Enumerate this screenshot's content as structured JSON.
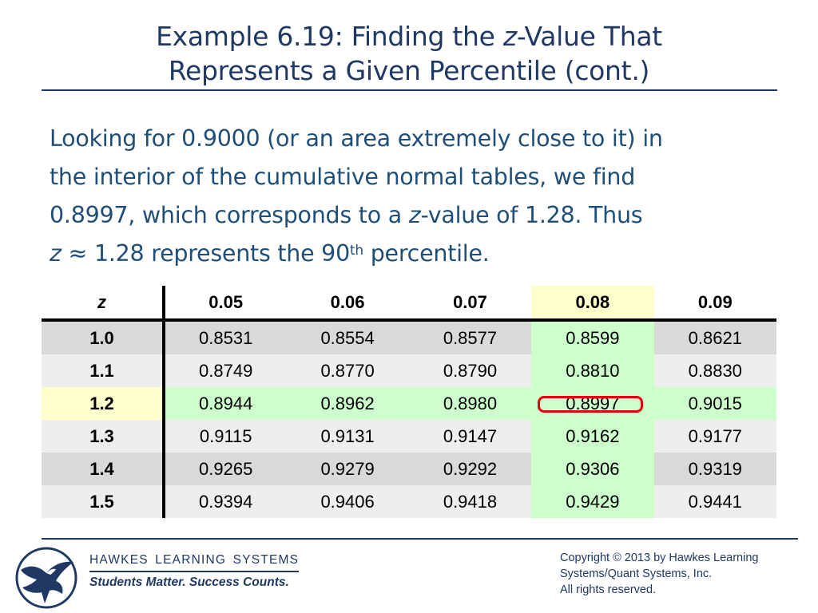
{
  "title": {
    "line1_pre": "Example 6.19: Finding the ",
    "line1_z": "z",
    "line1_post": "-Value That",
    "line2": "Represents a Given Percentile (cont.)"
  },
  "body": {
    "line1": "Looking for 0.9000 (or an area extremely close to it) in",
    "line2": "the interior of the cumulative normal tables, we find",
    "line3_pre": "0.8997, which corresponds to a ",
    "line3_z": "z",
    "line3_post": "-value of 1.28. Thus",
    "line4_z": "z",
    "line4_mid": " ≈ 1.28 represents the 90",
    "line4_sup": "th",
    "line4_post": " percentile."
  },
  "table": {
    "header_z": "z",
    "columns": [
      "0.05",
      "0.06",
      "0.07",
      "0.08",
      "0.09"
    ],
    "highlighted_column": "0.08",
    "highlighted_row": "1.2",
    "target_value": "0.8997",
    "rows": [
      {
        "z": "1.0",
        "values": [
          "0.8531",
          "0.8554",
          "0.8577",
          "0.8599",
          "0.8621"
        ]
      },
      {
        "z": "1.1",
        "values": [
          "0.8749",
          "0.8770",
          "0.8790",
          "0.8810",
          "0.8830"
        ]
      },
      {
        "z": "1.2",
        "values": [
          "0.8944",
          "0.8962",
          "0.8980",
          "0.8997",
          "0.9015"
        ]
      },
      {
        "z": "1.3",
        "values": [
          "0.9115",
          "0.9131",
          "0.9147",
          "0.9162",
          "0.9177"
        ]
      },
      {
        "z": "1.4",
        "values": [
          "0.9265",
          "0.9279",
          "0.9292",
          "0.9306",
          "0.9319"
        ]
      },
      {
        "z": "1.5",
        "values": [
          "0.9394",
          "0.9406",
          "0.9418",
          "0.9429",
          "0.9441"
        ]
      }
    ]
  },
  "footer": {
    "company": "HAWKES LEARNING SYSTEMS",
    "tagline": "Students Matter. Success Counts.",
    "copyright_line1": "Copyright © 2013 by Hawkes Learning",
    "copyright_line2": "Systems/Quant Systems, Inc.",
    "copyright_line3": "All rights reserved.",
    "logo_icon": "eagle-logo-icon"
  },
  "colors": {
    "title": "#1f3864",
    "body": "#1f4e79",
    "highlight_yellow": "#ffffcc",
    "highlight_green": "#ccffcc",
    "target_box": "#e3000f"
  }
}
